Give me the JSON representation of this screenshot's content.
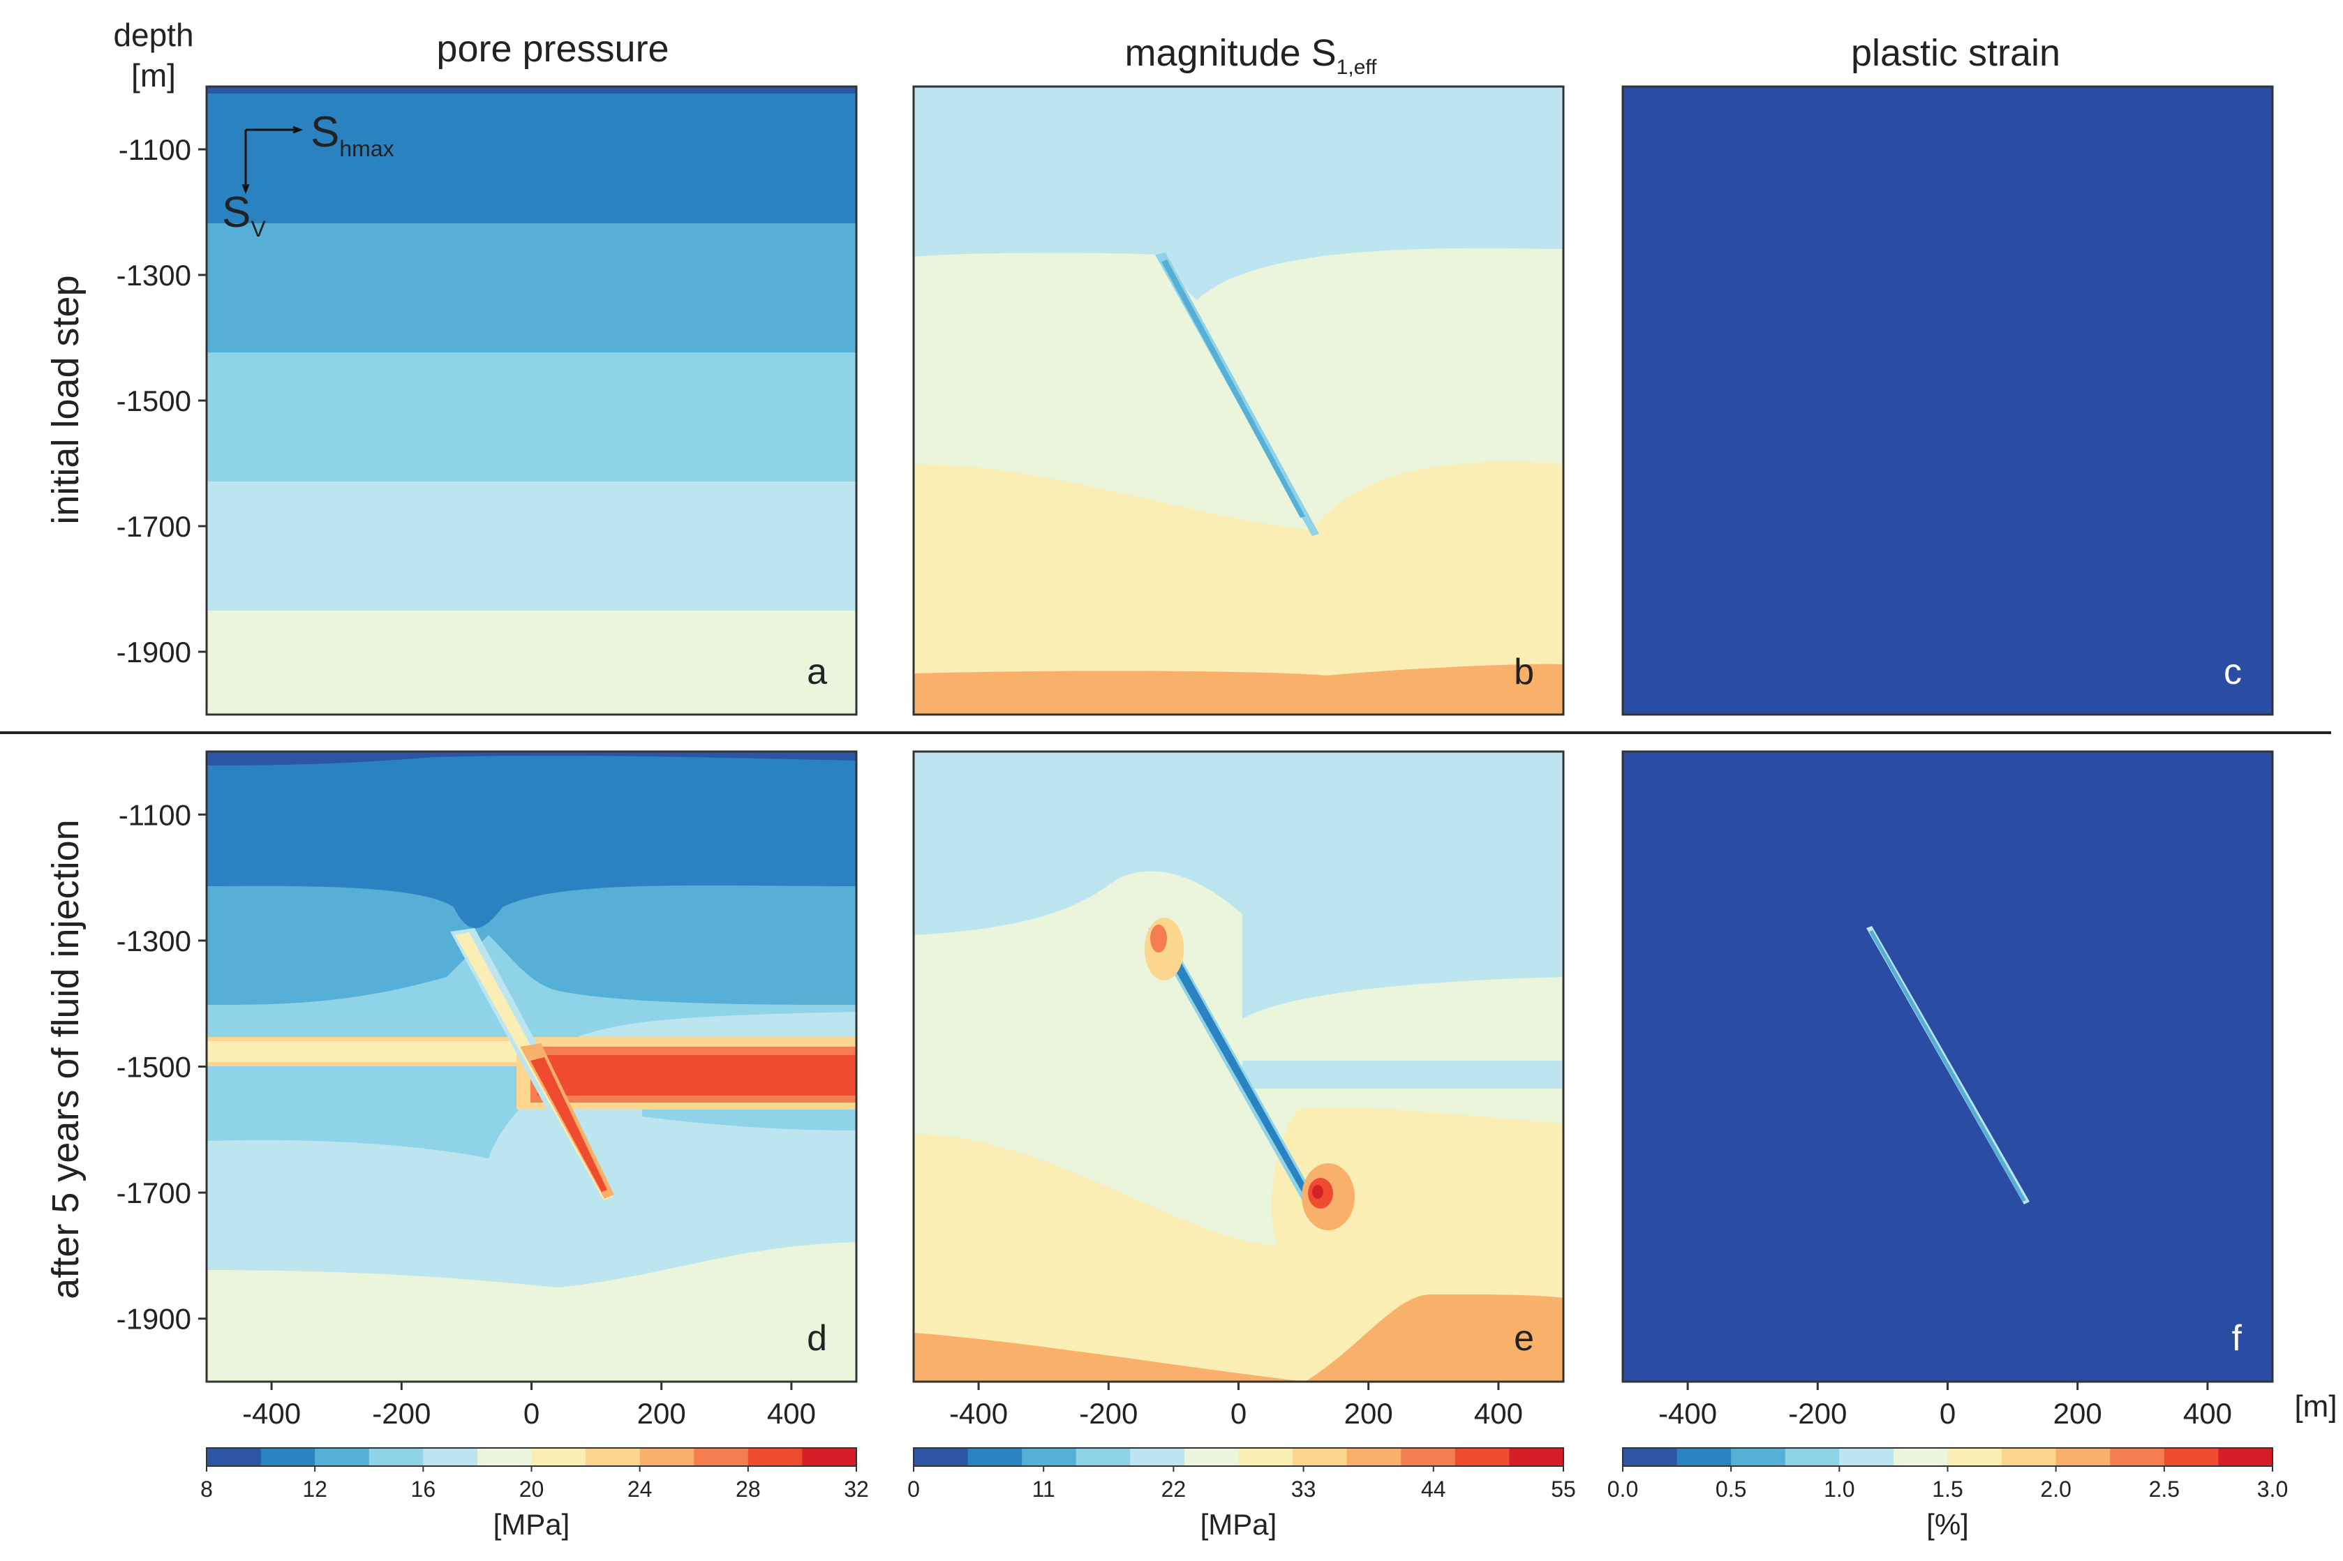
{
  "figure": {
    "depth_label": "depth",
    "depth_unit": "[m]",
    "x_unit": "[m]",
    "row_labels": [
      "initial load step",
      "after 5 years of fluid injection"
    ],
    "arrow_label_h": "S",
    "arrow_label_h_sub": "hmax",
    "arrow_label_v": "S",
    "arrow_label_v_sub": "V"
  },
  "chart_data": [
    {
      "type": "heatmap",
      "column": "pore pressure",
      "title": "pore pressure",
      "panels": [
        {
          "letter": "a",
          "state": "initial load step",
          "bands": [
            {
              "depth_top": -1000,
              "depth_bottom": -1010,
              "value": 9
            },
            {
              "depth_top": -1010,
              "depth_bottom": -1215,
              "value": 11
            },
            {
              "depth_top": -1215,
              "depth_bottom": -1420,
              "value": 13
            },
            {
              "depth_top": -1420,
              "depth_bottom": -1625,
              "value": 15
            },
            {
              "depth_top": -1625,
              "depth_bottom": -1830,
              "value": 17
            },
            {
              "depth_top": -1830,
              "depth_bottom": -2000,
              "value": 19
            }
          ]
        },
        {
          "letter": "d",
          "state": "after 5 years of fluid injection",
          "features": {
            "injection_layer_depth": -1520,
            "injection_layer_value": 29,
            "fault_from": [
              -125,
              -1290
            ],
            "fault_to": [
              125,
              -1710
            ]
          }
        }
      ],
      "colorbar": {
        "min": 8,
        "max": 32,
        "ticks": [
          "8",
          "12",
          "16",
          "20",
          "24",
          "28",
          "32"
        ],
        "unit": "[MPa]"
      }
    },
    {
      "type": "heatmap",
      "column": "magnitude S1,eff",
      "title": "magnitude S",
      "title_sub": "1,eff",
      "panels": [
        {
          "letter": "b",
          "state": "initial load step",
          "bands": [
            {
              "depth_top": -1000,
              "depth_bottom": -1260,
              "value": 20
            },
            {
              "depth_top": -1260,
              "depth_bottom": -1600,
              "value": 26
            },
            {
              "depth_top": -1600,
              "depth_bottom": -1930,
              "value": 33
            },
            {
              "depth_top": -1930,
              "depth_bottom": -2000,
              "value": 38
            }
          ]
        },
        {
          "letter": "e",
          "state": "after 5 years of fluid injection",
          "features": {
            "fault_from": [
              -125,
              -1290
            ],
            "fault_to": [
              125,
              -1710
            ]
          }
        }
      ],
      "colorbar": {
        "min": 0,
        "max": 55,
        "ticks": [
          "0",
          "11",
          "22",
          "33",
          "44",
          "55"
        ],
        "unit": "[MPa]"
      }
    },
    {
      "type": "heatmap",
      "column": "plastic strain",
      "title": "plastic strain",
      "panels": [
        {
          "letter": "c",
          "state": "initial load step",
          "uniform_value": 0.0
        },
        {
          "letter": "f",
          "state": "after 5 years of fluid injection",
          "uniform_value": 0.0,
          "features": {
            "fault_from": [
              -125,
              -1290
            ],
            "fault_to": [
              125,
              -1710
            ],
            "fault_value": 1.0
          }
        }
      ],
      "colorbar": {
        "min": 0.0,
        "max": 3.0,
        "ticks": [
          "0.0",
          "0.5",
          "1.0",
          "1.5",
          "2.0",
          "2.5",
          "3.0"
        ],
        "unit": "[%]"
      }
    }
  ],
  "axes": {
    "y_ticks": [
      "-1100",
      "-1300",
      "-1500",
      "-1700",
      "-1900"
    ],
    "y_tick_values": [
      -1100,
      -1300,
      -1500,
      -1700,
      -1900
    ],
    "y_range": [
      -1000,
      -2000
    ],
    "x_ticks": [
      "-400",
      "-200",
      "0",
      "200",
      "400"
    ],
    "x_tick_values": [
      -400,
      -200,
      0,
      200,
      400
    ],
    "x_range": [
      -500,
      500
    ]
  },
  "colors": {
    "palette": [
      "#2c55a4",
      "#2a82c0",
      "#55afd6",
      "#8fd3e8",
      "#bce5ef",
      "#eaf5dc",
      "#fbeeb4",
      "#fcd58f",
      "#f9b06a",
      "#f47e4f",
      "#ef4b30",
      "#d71e27"
    ],
    "panel_blue": "#2a4ca3"
  }
}
